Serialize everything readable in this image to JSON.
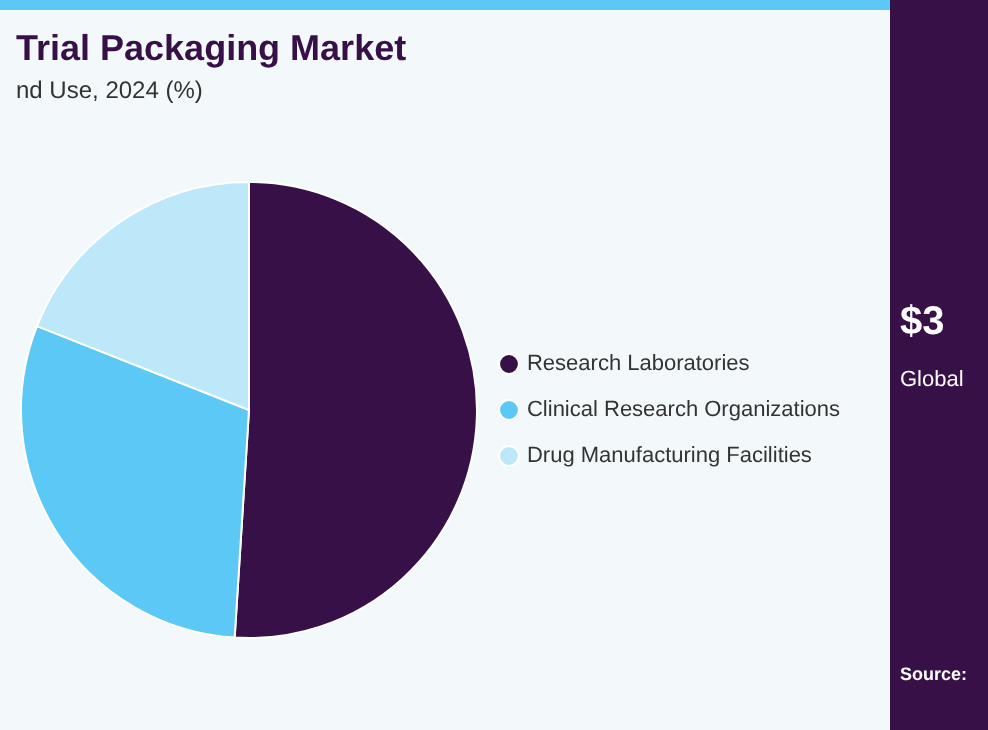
{
  "chart_data": {
    "type": "pie",
    "title": "Trial Packaging Market",
    "subtitle": "nd Use, 2024 (%)",
    "categories": [
      "Research Laboratories",
      "Clinical Research Organizations",
      "Drug Manufacturing Facilities"
    ],
    "values": [
      51,
      30,
      19
    ],
    "colors": [
      "#371047",
      "#5bc8f5",
      "#bce8f9"
    ],
    "legend": "right",
    "annotations": [
      "$3",
      "Global",
      "Source:"
    ]
  }
}
